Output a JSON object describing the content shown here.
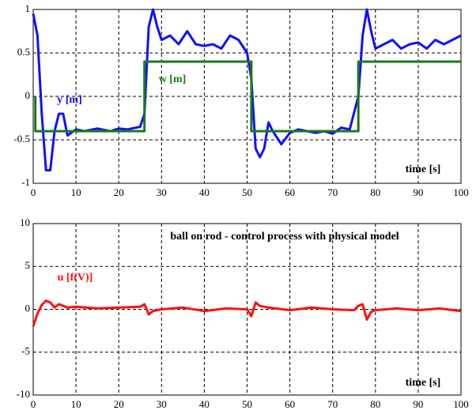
{
  "chart_data": [
    {
      "type": "line",
      "xlabel": "time [s]",
      "xlim": [
        0,
        100
      ],
      "xticks": [
        0,
        10,
        20,
        30,
        40,
        50,
        60,
        70,
        80,
        90,
        100
      ],
      "ylim": [
        -1,
        1
      ],
      "yticks": [
        -1,
        -0.5,
        0,
        0.5,
        1
      ],
      "grid": true,
      "series": [
        {
          "name": "y [m]",
          "color": "#1010ff",
          "x": [
            0,
            1,
            2,
            3,
            4,
            5,
            6,
            7,
            8,
            10,
            12,
            15,
            18,
            20,
            22,
            25,
            26,
            27,
            28,
            29,
            30,
            32,
            34,
            36,
            38,
            40,
            42,
            44,
            46,
            48,
            50,
            51,
            52,
            53,
            54,
            55,
            56,
            58,
            60,
            62,
            64,
            66,
            68,
            70,
            72,
            74,
            76,
            77,
            78,
            79,
            80,
            82,
            84,
            86,
            88,
            90,
            92,
            94,
            96,
            98,
            100
          ],
          "values": [
            0.95,
            0.7,
            -0.2,
            -0.85,
            -0.85,
            -0.4,
            -0.2,
            -0.2,
            -0.45,
            -0.38,
            -0.4,
            -0.37,
            -0.4,
            -0.37,
            -0.38,
            -0.35,
            -0.2,
            0.8,
            1.0,
            0.8,
            0.65,
            0.7,
            0.6,
            0.75,
            0.6,
            0.58,
            0.6,
            0.55,
            0.7,
            0.65,
            0.5,
            0.2,
            -0.6,
            -0.7,
            -0.6,
            -0.3,
            -0.4,
            -0.55,
            -0.42,
            -0.38,
            -0.4,
            -0.42,
            -0.4,
            -0.43,
            -0.36,
            -0.38,
            0.0,
            0.7,
            1.0,
            0.75,
            0.55,
            0.6,
            0.65,
            0.55,
            0.6,
            0.62,
            0.55,
            0.65,
            0.6,
            0.65,
            0.7
          ]
        },
        {
          "name": "w [m]",
          "color": "#1a7a1a",
          "x": [
            0.5,
            0.5,
            26,
            26,
            51,
            51,
            76,
            76,
            100
          ],
          "values": [
            0,
            -0.4,
            -0.4,
            0.4,
            0.4,
            -0.4,
            -0.4,
            0.4,
            0.4
          ]
        }
      ]
    },
    {
      "type": "line",
      "title": "ball on rod - control process with physical model",
      "xlabel": "time [s]",
      "xlim": [
        0,
        100
      ],
      "xticks": [
        0,
        10,
        20,
        30,
        40,
        50,
        60,
        70,
        80,
        90,
        100
      ],
      "ylim": [
        -10,
        10
      ],
      "yticks": [
        -10,
        -5,
        0,
        5,
        10
      ],
      "grid": true,
      "series": [
        {
          "name": "u [f(V)]",
          "color": "#ff1010",
          "x": [
            0,
            1,
            2,
            3,
            4,
            5,
            6,
            8,
            10,
            15,
            20,
            25,
            26,
            27,
            28,
            30,
            35,
            40,
            45,
            50,
            51,
            52,
            53,
            55,
            60,
            65,
            70,
            75,
            76,
            77,
            78,
            79,
            80,
            85,
            90,
            95,
            100
          ],
          "values": [
            -2,
            -0.5,
            0.5,
            1,
            0.8,
            0.2,
            0.6,
            0.2,
            0.3,
            0.1,
            0.2,
            0.3,
            0.6,
            -0.6,
            -0.2,
            0,
            0.2,
            -0.2,
            0.1,
            0,
            -0.8,
            0.8,
            0.4,
            0.2,
            -0.1,
            0.2,
            0,
            -0.1,
            0.4,
            0.6,
            -1.2,
            -0.3,
            -0.1,
            0.1,
            -0.1,
            0.1,
            -0.2
          ]
        }
      ]
    }
  ]
}
